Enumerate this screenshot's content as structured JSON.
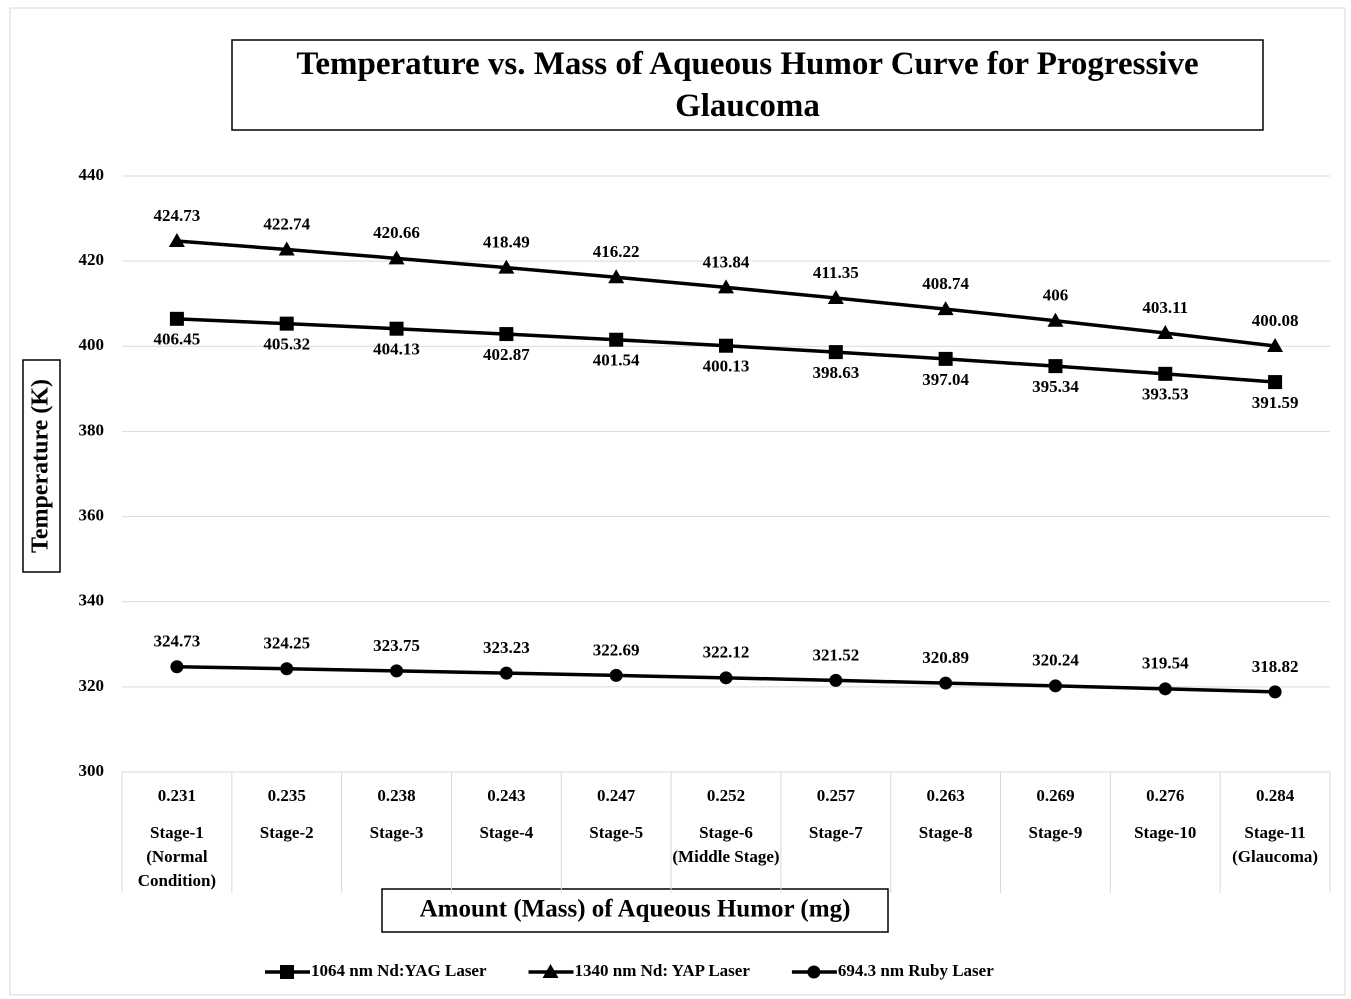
{
  "chart_data": {
    "type": "line",
    "title": "Temperature vs. Mass of Aqueous Humor  Curve for Progressive Glaucoma",
    "x_label": "Amount (Mass) of Aqueous Humor (mg)",
    "y_label": "Temperature (K)",
    "categories": [
      "0.231",
      "0.235",
      "0.238",
      "0.243",
      "0.247",
      "0.252",
      "0.257",
      "0.263",
      "0.269",
      "0.276",
      "0.284"
    ],
    "category_groups": [
      "Stage-1 (Normal Condition)",
      "Stage-2",
      "Stage-3",
      "Stage-4",
      "Stage-5",
      "Stage-6 (Middle Stage)",
      "Stage-7",
      "Stage-8",
      "Stage-9",
      "Stage-10",
      "Stage-11 (Glaucoma)"
    ],
    "series": [
      {
        "name": "1064 nm Nd:YAG Laser",
        "color": "#000000",
        "marker": "square",
        "label_position": "below",
        "values": [
          406.45,
          405.32,
          404.13,
          402.87,
          401.54,
          400.13,
          398.63,
          397.04,
          395.34,
          393.53,
          391.59
        ]
      },
      {
        "name": "1340 nm Nd: YAP Laser",
        "color": "#000000",
        "marker": "triangle",
        "label_position": "above",
        "values": [
          424.73,
          422.74,
          420.66,
          418.49,
          416.22,
          413.84,
          411.35,
          408.74,
          406,
          403.11,
          400.08
        ]
      },
      {
        "name": "694.3 nm Ruby Laser",
        "color": "#000000",
        "marker": "circle",
        "label_position": "above",
        "values": [
          324.73,
          324.25,
          323.75,
          323.23,
          322.69,
          322.12,
          321.52,
          320.89,
          320.24,
          319.54,
          318.82
        ]
      }
    ],
    "ylim": [
      300,
      440
    ],
    "yticks": [
      300,
      320,
      340,
      360,
      380,
      400,
      420,
      440
    ],
    "grid": true,
    "legend": "bottom"
  }
}
